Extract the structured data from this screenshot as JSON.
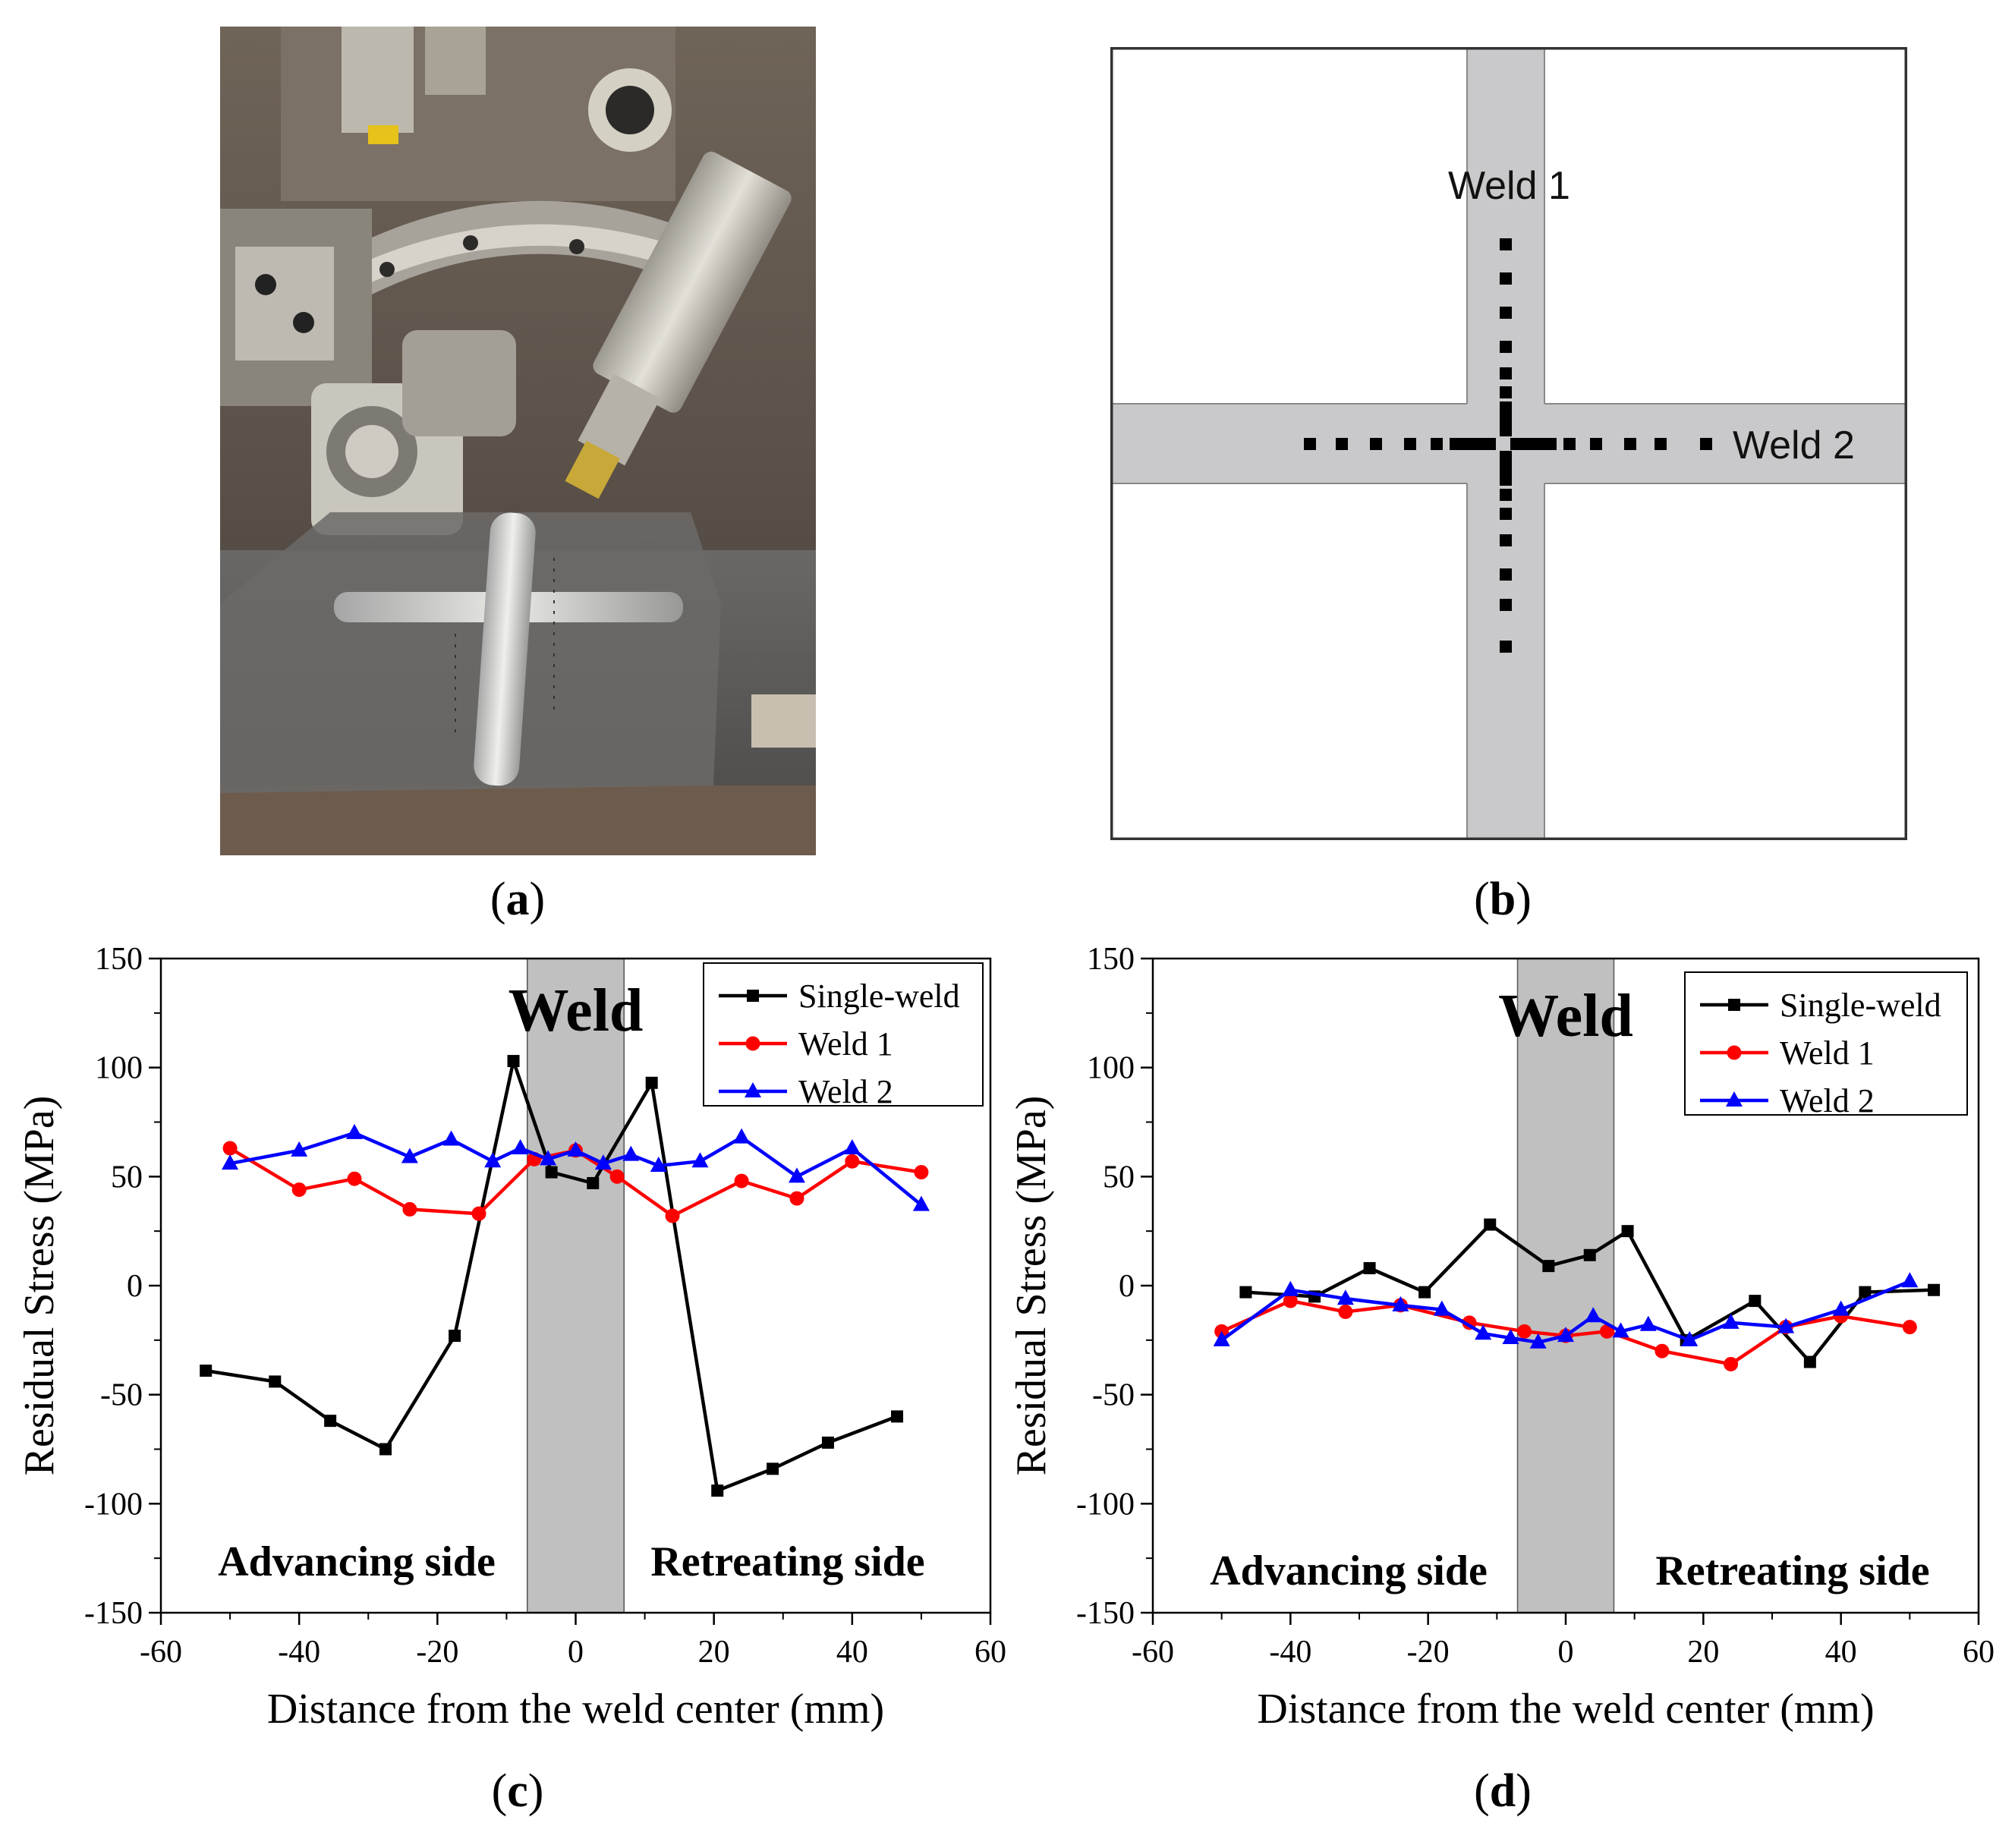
{
  "panels": {
    "a": {
      "label_open": "(",
      "letter": "a",
      "label_close": ")"
    },
    "b": {
      "label_open": "(",
      "letter": "b",
      "label_close": ")"
    },
    "c": {
      "label_open": "(",
      "letter": "c",
      "label_close": ")"
    },
    "d": {
      "label_open": "(",
      "letter": "d",
      "label_close": ")"
    }
  },
  "schematic": {
    "weld1_label": "Weld 1",
    "weld2_label": "Weld 2",
    "colors": {
      "weld_band": "#c9c9cb",
      "marker": "#000000",
      "frame": "#333333"
    }
  },
  "colors": {
    "single": "#000000",
    "weld1": "#ff0000",
    "weld2": "#0000ff",
    "weld_zone": "#c0c0c0"
  },
  "chart_data": [
    {
      "id": "c",
      "type": "line",
      "xlabel": "Distance from the weld center (mm)",
      "ylabel": "Residual Stress (MPa)",
      "xlim": [
        -60,
        60
      ],
      "ylim": [
        -150,
        150
      ],
      "xticks": [
        -60,
        -40,
        -20,
        0,
        20,
        40,
        60
      ],
      "yticks": [
        -150,
        -100,
        -50,
        0,
        50,
        100,
        150
      ],
      "weld_zone": [
        -7,
        7
      ],
      "weld_label": "Weld",
      "left_annotation": "Advancing side",
      "right_annotation": "Retreating side",
      "legend_position": "top-right",
      "series": [
        {
          "name": "Single-weld",
          "marker": "square",
          "color": "#000000",
          "x": [
            -53.5,
            -43.5,
            -35.5,
            -27.5,
            -17.5,
            -9,
            -3.5,
            2.5,
            11,
            20.5,
            28.5,
            36.5,
            46.5
          ],
          "y": [
            -39,
            -44,
            -62,
            -75,
            -23,
            103,
            52,
            47,
            93,
            -94,
            -84,
            -72,
            -60
          ]
        },
        {
          "name": "Weld 1",
          "marker": "circle",
          "color": "#ff0000",
          "x": [
            -50,
            -40,
            -32,
            -24,
            -14,
            -6,
            0,
            6,
            14,
            24,
            32,
            40,
            50
          ],
          "y": [
            63,
            44,
            49,
            35,
            33,
            58,
            62,
            50,
            32,
            48,
            40,
            57,
            52
          ]
        },
        {
          "name": "Weld 2",
          "marker": "triangle",
          "color": "#0000ff",
          "x": [
            -50,
            -40,
            -32,
            -24,
            -18,
            -12,
            -8,
            -4,
            0,
            4,
            8,
            12,
            18,
            24,
            32,
            40,
            50
          ],
          "y": [
            56,
            62,
            70,
            59,
            67,
            57,
            63,
            58,
            62,
            56,
            60,
            55,
            57,
            68,
            50,
            63,
            37
          ]
        }
      ]
    },
    {
      "id": "d",
      "type": "line",
      "xlabel": "Distance from the weld center (mm)",
      "ylabel": "Residual Stress (MPa)",
      "xlim": [
        -60,
        60
      ],
      "ylim": [
        -150,
        150
      ],
      "xticks": [
        -60,
        -40,
        -20,
        0,
        20,
        40,
        60
      ],
      "yticks": [
        -150,
        -100,
        -50,
        0,
        50,
        100,
        150
      ],
      "weld_zone": [
        -7,
        7
      ],
      "weld_label": "Weld",
      "left_annotation": "Advancing side",
      "right_annotation": "Retreating side",
      "legend_position": "top-right",
      "series": [
        {
          "name": "Single-weld",
          "marker": "square",
          "color": "#000000",
          "x": [
            -46.5,
            -36.5,
            -28.5,
            -20.5,
            -11,
            -2.5,
            3.5,
            9,
            17.5,
            27.5,
            35.5,
            43.5,
            53.5
          ],
          "y": [
            -3,
            -5,
            8,
            -3,
            28,
            9,
            14,
            25,
            -25,
            -7,
            -35,
            -3,
            -2
          ]
        },
        {
          "name": "Weld 1",
          "marker": "circle",
          "color": "#ff0000",
          "x": [
            -50,
            -40,
            -32,
            -24,
            -14,
            -6,
            0,
            6,
            14,
            24,
            32,
            40,
            50
          ],
          "y": [
            -21,
            -7,
            -12,
            -9,
            -17,
            -21,
            -23,
            -21,
            -30,
            -36,
            -19,
            -14,
            -19
          ]
        },
        {
          "name": "Weld 2",
          "marker": "triangle",
          "color": "#0000ff",
          "x": [
            -50,
            -40,
            -32,
            -24,
            -18,
            -12,
            -8,
            -4,
            0,
            4,
            8,
            12,
            18,
            24,
            32,
            40,
            50
          ],
          "y": [
            -25,
            -2,
            -6,
            -9,
            -11,
            -22,
            -24,
            -26,
            -23,
            -14,
            -21,
            -18,
            -25,
            -17,
            -19,
            -11,
            2
          ]
        }
      ]
    }
  ]
}
